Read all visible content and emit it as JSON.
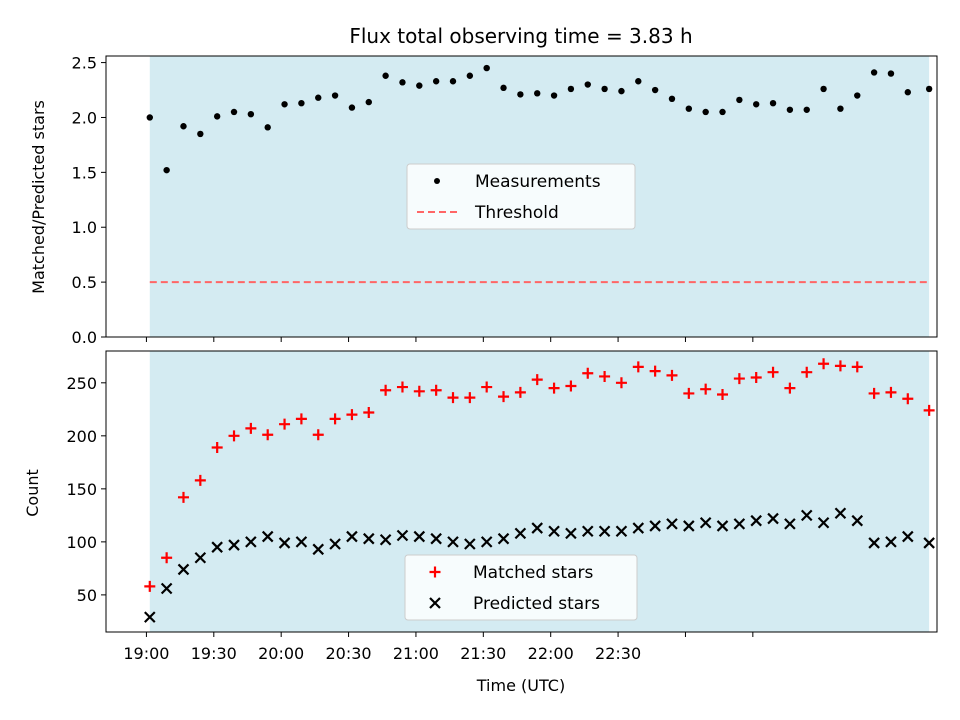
{
  "chart_data": [
    {
      "type": "scatter",
      "title": "Flux total observing time = 3.83 h",
      "xlabel": "",
      "ylabel": "Matched/Predicted stars",
      "xlim_minutes": [
        1122,
        1492
      ],
      "ylim": [
        0,
        2.56
      ],
      "yticks": [
        0.0,
        0.5,
        1.0,
        1.5,
        2.0,
        2.5
      ],
      "ytick_labels": [
        "0.0",
        "0.5",
        "1.0",
        "1.5",
        "2.0",
        "2.5"
      ],
      "shaded_span_minutes": [
        1141.5,
        1488.5
      ],
      "shade_color": "#add8e6",
      "legend_position": "center",
      "legend": [
        "Measurements",
        "Threshold"
      ],
      "threshold": 0.5,
      "threshold_color": "#ff6666",
      "series": [
        {
          "name": "Measurements",
          "marker": "dot",
          "color": "#000000",
          "x_minutes": [
            1141.5,
            1149,
            1156.5,
            1164,
            1171.5,
            1179,
            1186.5,
            1194,
            1201.5,
            1209,
            1216.5,
            1224,
            1231.5,
            1239,
            1246.5,
            1254,
            1261.5,
            1269,
            1276.5,
            1284,
            1291.5,
            1299,
            1306.5,
            1314,
            1321.5,
            1329,
            1336.5,
            1344,
            1351.5,
            1359,
            1366.5,
            1374,
            1381.5,
            1389,
            1396.5,
            1404,
            1411.5,
            1419,
            1426.5,
            1434,
            1441.5,
            1449,
            1456.5,
            1464,
            1471.5,
            1479,
            1488.5
          ],
          "values": [
            2.0,
            1.52,
            1.92,
            1.85,
            2.01,
            2.05,
            2.03,
            1.91,
            2.12,
            2.13,
            2.18,
            2.2,
            2.09,
            2.14,
            2.38,
            2.32,
            2.29,
            2.33,
            2.33,
            2.38,
            2.45,
            2.27,
            2.21,
            2.22,
            2.2,
            2.26,
            2.3,
            2.26,
            2.24,
            2.33,
            2.25,
            2.17,
            2.08,
            2.05,
            2.05,
            2.16,
            2.12,
            2.13,
            2.07,
            2.07,
            2.26,
            2.08,
            2.2,
            2.41,
            2.4,
            2.23,
            2.26
          ]
        }
      ]
    },
    {
      "type": "scatter",
      "title": "",
      "xlabel": "Time (UTC)",
      "ylabel": "Count",
      "xlim_minutes": [
        1122,
        1492
      ],
      "ylim": [
        15,
        280
      ],
      "yticks": [
        50,
        100,
        150,
        200,
        250
      ],
      "ytick_labels": [
        "50",
        "100",
        "150",
        "200",
        "250"
      ],
      "xticks_minutes": [
        1140,
        1170,
        1200,
        1230,
        1260,
        1290,
        1320,
        1350,
        1380,
        1410
      ],
      "xtick_labels": [
        "19:00",
        "19:30",
        "20:00",
        "20:30",
        "21:00",
        "21:30",
        "22:00",
        "22:30"
      ],
      "label_xticks_minutes": [
        1140,
        1170,
        1200,
        1230,
        1260,
        1290,
        1320,
        1350
      ],
      "shaded_span_minutes": [
        1141.5,
        1488.5
      ],
      "shade_color": "#add8e6",
      "legend_position": "lower center",
      "legend": [
        "Matched stars",
        "Predicted stars"
      ],
      "series": [
        {
          "name": "Matched stars",
          "marker": "plus",
          "color": "#ff0000",
          "x_minutes": [
            1141.5,
            1149,
            1156.5,
            1164,
            1171.5,
            1179,
            1186.5,
            1194,
            1201.5,
            1209,
            1216.5,
            1224,
            1231.5,
            1239,
            1246.5,
            1254,
            1261.5,
            1269,
            1276.5,
            1284,
            1291.5,
            1299,
            1306.5,
            1314,
            1321.5,
            1329,
            1336.5,
            1344,
            1351.5,
            1359,
            1366.5,
            1374,
            1381.5,
            1389,
            1396.5,
            1404,
            1411.5,
            1419,
            1426.5,
            1434,
            1441.5,
            1449,
            1456.5,
            1464,
            1471.5,
            1479,
            1488.5
          ],
          "values": [
            58,
            85,
            142,
            158,
            189,
            200,
            207,
            201,
            211,
            216,
            201,
            216,
            220,
            222,
            243,
            246,
            242,
            243,
            236,
            236,
            246,
            237,
            241,
            253,
            245,
            247,
            259,
            256,
            250,
            265,
            261,
            257,
            240,
            244,
            239,
            254,
            255,
            260,
            245,
            260,
            268,
            266,
            265,
            240,
            241,
            235,
            224
          ]
        },
        {
          "name": "Predicted stars",
          "marker": "x",
          "color": "#000000",
          "x_minutes": [
            1141.5,
            1149,
            1156.5,
            1164,
            1171.5,
            1179,
            1186.5,
            1194,
            1201.5,
            1209,
            1216.5,
            1224,
            1231.5,
            1239,
            1246.5,
            1254,
            1261.5,
            1269,
            1276.5,
            1284,
            1291.5,
            1299,
            1306.5,
            1314,
            1321.5,
            1329,
            1336.5,
            1344,
            1351.5,
            1359,
            1366.5,
            1374,
            1381.5,
            1389,
            1396.5,
            1404,
            1411.5,
            1419,
            1426.5,
            1434,
            1441.5,
            1449,
            1456.5,
            1464,
            1471.5,
            1479,
            1488.5
          ],
          "values": [
            29,
            56,
            74,
            85,
            95,
            97,
            100,
            105,
            99,
            100,
            93,
            98,
            105,
            103,
            102,
            106,
            105,
            103,
            100,
            98,
            100,
            103,
            108,
            113,
            110,
            108,
            110,
            110,
            110,
            113,
            115,
            117,
            115,
            118,
            115,
            117,
            120,
            122,
            117,
            125,
            118,
            127,
            120,
            99,
            100,
            105,
            99
          ]
        }
      ]
    }
  ]
}
